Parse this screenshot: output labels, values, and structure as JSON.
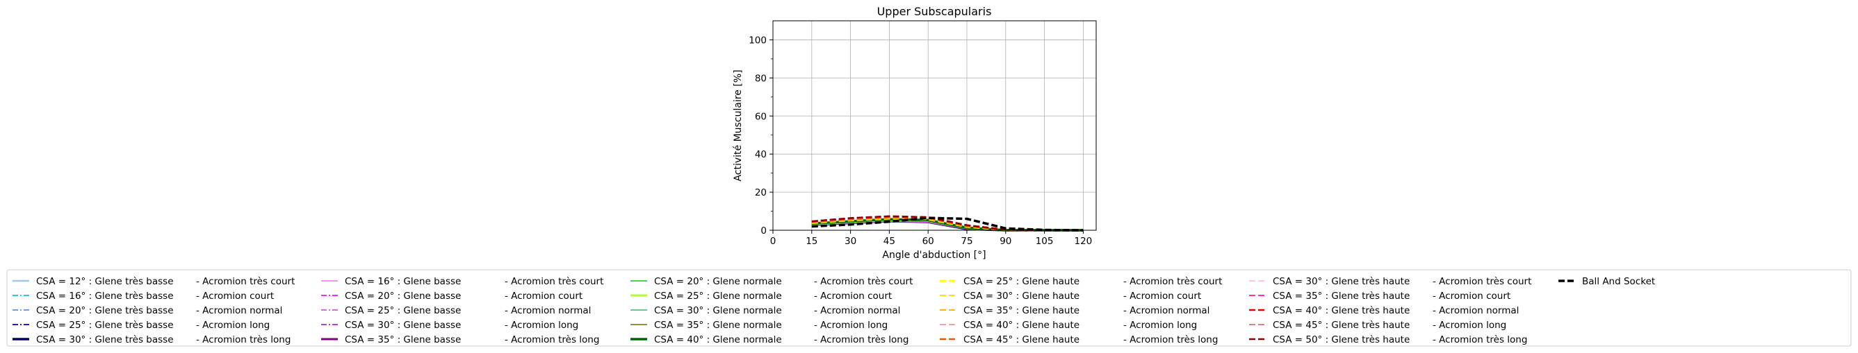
{
  "chart_data": {
    "type": "line",
    "title": "Upper Subscapularis",
    "xlabel": "Angle d'abduction [°]",
    "ylabel": "Activité Musculaire [%]",
    "xlim": [
      0,
      125
    ],
    "ylim": [
      0,
      110
    ],
    "xticks": [
      0,
      15,
      30,
      45,
      60,
      75,
      90,
      105,
      120
    ],
    "yticks": [
      0,
      20,
      40,
      60,
      80,
      100
    ],
    "grid": true,
    "legend_position": "bottom",
    "x": [
      15,
      30,
      45,
      60,
      75,
      90,
      105,
      120
    ],
    "series": [
      {
        "name": "CSA = 12° : Glene très basse",
        "suffix": "- Acromion très court",
        "color": "#9ecae1",
        "dash": "solid",
        "width": 2.5,
        "values": [
          2.5,
          3.5,
          4.5,
          4.0,
          0.5,
          0.0,
          0.0,
          0.0
        ]
      },
      {
        "name": "CSA = 16° : Glene très basse",
        "suffix": "- Acromion court",
        "color": "#17becf",
        "dash": "dashdot",
        "width": 1.8,
        "values": [
          2.6,
          3.6,
          4.6,
          4.1,
          0.6,
          0.0,
          0.0,
          0.0
        ]
      },
      {
        "name": "CSA = 20° : Glene très basse",
        "suffix": "- Acromion normal",
        "color": "#4a7fd6",
        "dash": "dashdot",
        "width": 1.5,
        "values": [
          2.7,
          3.7,
          4.7,
          4.2,
          0.6,
          0.0,
          0.0,
          0.0
        ]
      },
      {
        "name": "CSA = 25° : Glene très basse",
        "suffix": "- Acromion long",
        "color": "#0000b3",
        "dash": "dashdot",
        "width": 1.8,
        "values": [
          2.8,
          3.8,
          4.8,
          4.3,
          0.7,
          0.0,
          0.0,
          0.0
        ]
      },
      {
        "name": "CSA = 30° : Glene très basse",
        "suffix": "- Acromion très long",
        "color": "#000066",
        "dash": "solid",
        "width": 3.5,
        "values": [
          2.9,
          3.9,
          4.9,
          4.4,
          0.7,
          0.0,
          0.0,
          0.0
        ]
      },
      {
        "name": "CSA = 16° : Glene basse",
        "suffix": "- Acromion très court",
        "color": "#ee82ee",
        "dash": "solid",
        "width": 1.8,
        "values": [
          2.8,
          3.9,
          4.8,
          4.3,
          0.7,
          0.0,
          0.0,
          0.0
        ]
      },
      {
        "name": "CSA = 20° : Glene basse",
        "suffix": "- Acromion court",
        "color": "#ff00ff",
        "dash": "dashdot",
        "width": 1.8,
        "values": [
          3.0,
          4.1,
          5.0,
          4.5,
          0.8,
          0.0,
          0.0,
          0.0
        ]
      },
      {
        "name": "CSA = 25° : Glene basse",
        "suffix": "- Acromion normal",
        "color": "#c040c0",
        "dash": "dashdot",
        "width": 1.5,
        "values": [
          3.1,
          4.2,
          5.2,
          4.6,
          0.8,
          0.0,
          0.0,
          0.0
        ]
      },
      {
        "name": "CSA = 30° : Glene basse",
        "suffix": "- Acromion long",
        "color": "#9400d3",
        "dash": "dashdot",
        "width": 1.5,
        "values": [
          3.2,
          4.3,
          5.3,
          4.7,
          0.9,
          0.0,
          0.0,
          0.0
        ]
      },
      {
        "name": "CSA = 35° : Glene basse",
        "suffix": "- Acromion très long",
        "color": "#800080",
        "dash": "solid",
        "width": 3.0,
        "values": [
          3.3,
          4.4,
          5.4,
          4.8,
          0.9,
          0.0,
          0.0,
          0.0
        ]
      },
      {
        "name": "CSA = 20° : Glene normale",
        "suffix": "- Acromion très court",
        "color": "#32cd32",
        "dash": "solid",
        "width": 1.8,
        "values": [
          3.0,
          4.2,
          5.2,
          4.8,
          1.0,
          0.0,
          0.0,
          0.0
        ]
      },
      {
        "name": "CSA = 25° : Glene normale",
        "suffix": "- Acromion court",
        "color": "#adff2f",
        "dash": "solid",
        "width": 3.0,
        "values": [
          3.2,
          4.4,
          5.4,
          5.0,
          1.1,
          0.0,
          0.0,
          0.0
        ]
      },
      {
        "name": "CSA = 30° : Glene normale",
        "suffix": "- Acromion normal",
        "color": "#3cb371",
        "dash": "solid",
        "width": 1.5,
        "values": [
          3.3,
          4.5,
          5.5,
          5.1,
          1.2,
          0.0,
          0.0,
          0.0
        ]
      },
      {
        "name": "CSA = 35° : Glene normale",
        "suffix": "- Acromion long",
        "color": "#6b6b00",
        "dash": "solid",
        "width": 1.5,
        "values": [
          3.4,
          4.6,
          5.6,
          5.2,
          1.2,
          0.0,
          0.0,
          0.0
        ]
      },
      {
        "name": "CSA = 40° : Glene normale",
        "suffix": "- Acromion très long",
        "color": "#006400",
        "dash": "solid",
        "width": 3.5,
        "values": [
          3.5,
          4.7,
          5.8,
          5.3,
          1.3,
          0.0,
          0.0,
          0.0
        ]
      },
      {
        "name": "CSA = 25° : Glene haute",
        "suffix": "- Acromion très court",
        "color": "#ffff00",
        "dash": "dashed",
        "width": 3.0,
        "values": [
          3.8,
          5.2,
          6.2,
          5.8,
          1.8,
          0.2,
          0.0,
          0.0
        ]
      },
      {
        "name": "CSA = 30° : Glene haute",
        "suffix": "- Acromion court",
        "color": "#ffd700",
        "dash": "dashed",
        "width": 1.8,
        "values": [
          3.9,
          5.3,
          6.3,
          5.9,
          1.9,
          0.2,
          0.0,
          0.0
        ]
      },
      {
        "name": "CSA = 35° : Glene haute",
        "suffix": "- Acromion normal",
        "color": "#ffa500",
        "dash": "dashed",
        "width": 1.8,
        "values": [
          4.0,
          5.5,
          6.5,
          6.1,
          2.0,
          0.2,
          0.0,
          0.0
        ]
      },
      {
        "name": "CSA = 40° : Glene haute",
        "suffix": "- Acromion long",
        "color": "#f08080",
        "dash": "dashed",
        "width": 1.5,
        "values": [
          4.1,
          5.6,
          6.6,
          6.2,
          2.1,
          0.2,
          0.0,
          0.0
        ]
      },
      {
        "name": "CSA = 45° : Glene haute",
        "suffix": "- Acromion très long",
        "color": "#e05a00",
        "dash": "dashed",
        "width": 2.5,
        "values": [
          4.2,
          5.8,
          6.8,
          6.4,
          2.2,
          0.2,
          0.0,
          0.0
        ]
      },
      {
        "name": "CSA = 30° : Glene très haute",
        "suffix": "- Acromion très court",
        "color": "#ffb6c1",
        "dash": "dashed",
        "width": 1.5,
        "values": [
          4.3,
          5.9,
          7.0,
          6.5,
          2.4,
          0.3,
          0.0,
          0.0
        ]
      },
      {
        "name": "CSA = 35° : Glene très haute",
        "suffix": "- Acromion court",
        "color": "#ff1493",
        "dash": "dashed",
        "width": 1.8,
        "values": [
          4.4,
          6.1,
          7.1,
          6.6,
          2.5,
          0.3,
          0.0,
          0.0
        ]
      },
      {
        "name": "CSA = 40° : Glene très haute",
        "suffix": "- Acromion normal",
        "color": "#e00000",
        "dash": "dashed",
        "width": 2.5,
        "values": [
          4.6,
          6.3,
          7.3,
          6.8,
          2.6,
          0.3,
          0.0,
          0.0
        ]
      },
      {
        "name": "CSA = 45° : Glene très haute",
        "suffix": "- Acromion long",
        "color": "#e05050",
        "dash": "dashed",
        "width": 1.5,
        "values": [
          4.5,
          6.2,
          7.2,
          6.7,
          2.5,
          0.3,
          0.0,
          0.0
        ]
      },
      {
        "name": "CSA = 50° : Glene très haute",
        "suffix": "- Acromion très long",
        "color": "#8b0000",
        "dash": "dashed",
        "width": 2.5,
        "values": [
          4.7,
          6.4,
          7.4,
          6.9,
          2.7,
          0.3,
          0.0,
          0.0
        ]
      },
      {
        "name": "Ball And Socket",
        "suffix": "",
        "color": "#000000",
        "dash": "dashed",
        "width": 3.5,
        "values": [
          2.0,
          3.0,
          4.5,
          6.5,
          6.0,
          1.0,
          0.2,
          0.0
        ]
      }
    ]
  }
}
